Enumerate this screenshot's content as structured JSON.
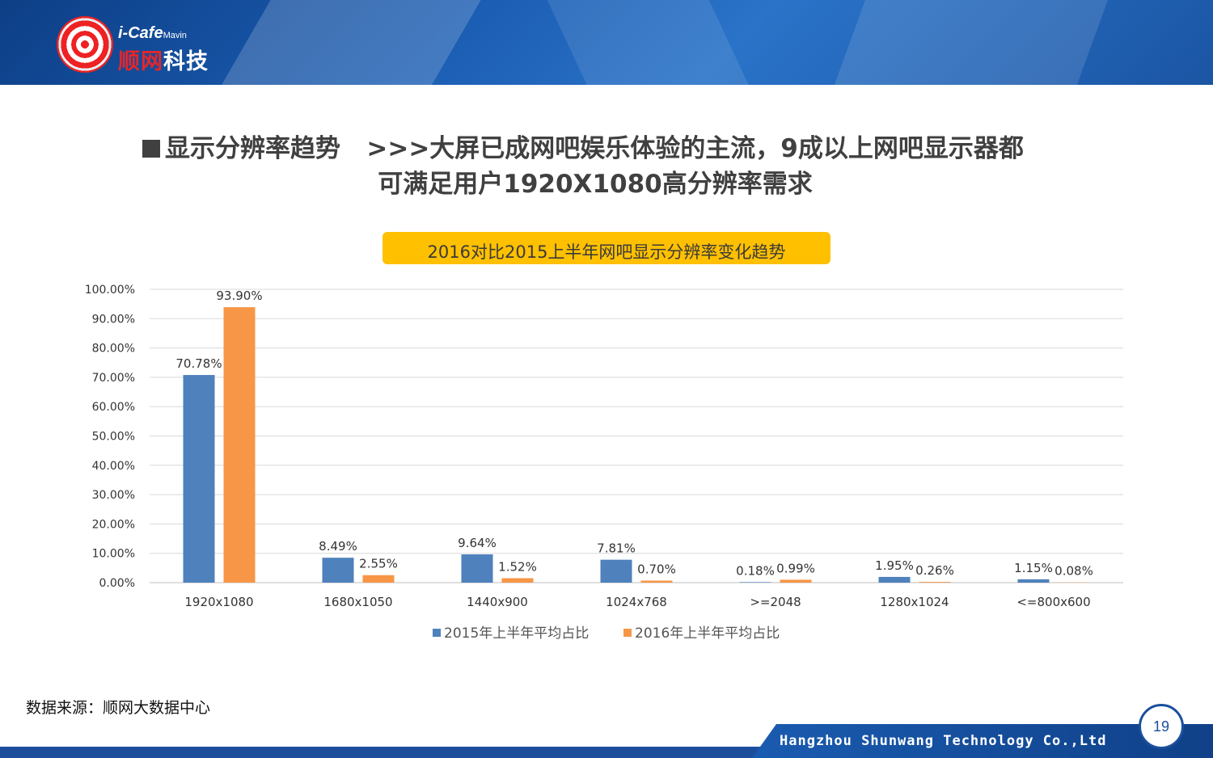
{
  "header": {
    "logo_en": "i-Cafe",
    "logo_en_suffix": "Mavin",
    "logo_cn_red": "顺网",
    "logo_cn": "科技"
  },
  "title": {
    "line1": "显示分辨率趋势   >>>大屏已成网吧娱乐体验的主流，9成以上网吧显示器都",
    "line2": "可满足用户1920X1080高分辨率需求"
  },
  "colors": {
    "series_2015": "#4f81bd",
    "series_2016": "#f79646",
    "header_blue": "#1b4f9c",
    "accent_yellow": "#ffc000"
  },
  "chart_data": {
    "type": "bar",
    "title": "2016对比2015上半年网吧显示分辨率变化趋势",
    "categories": [
      "1920x1080",
      "1680x1050",
      "1440x900",
      "1024x768",
      ">=2048",
      "1280x1024",
      "<=800x600"
    ],
    "series": [
      {
        "name": "2015年上半年平均占比",
        "values": [
          70.78,
          8.49,
          9.64,
          7.81,
          0.18,
          1.95,
          1.15
        ],
        "labels": [
          "70.78%",
          "8.49%",
          "9.64%",
          "7.81%",
          "0.18%",
          "1.95%",
          "1.15%"
        ]
      },
      {
        "name": "2016年上半年平均占比",
        "values": [
          93.9,
          2.55,
          1.52,
          0.7,
          0.99,
          0.26,
          0.08
        ],
        "labels": [
          "93.90%",
          "2.55%",
          "1.52%",
          "0.70%",
          "0.99%",
          "0.26%",
          "0.08%"
        ]
      }
    ],
    "y_ticks": [
      "0.00%",
      "10.00%",
      "20.00%",
      "30.00%",
      "40.00%",
      "50.00%",
      "60.00%",
      "70.00%",
      "80.00%",
      "90.00%",
      "100.00%"
    ],
    "ylim": [
      0,
      100
    ],
    "grid": true,
    "legend": "bottom"
  },
  "footer": {
    "source": "数据来源：顺网大数据中心",
    "company": "Hangzhou Shunwang Technology Co.,Ltd",
    "page": "19"
  }
}
